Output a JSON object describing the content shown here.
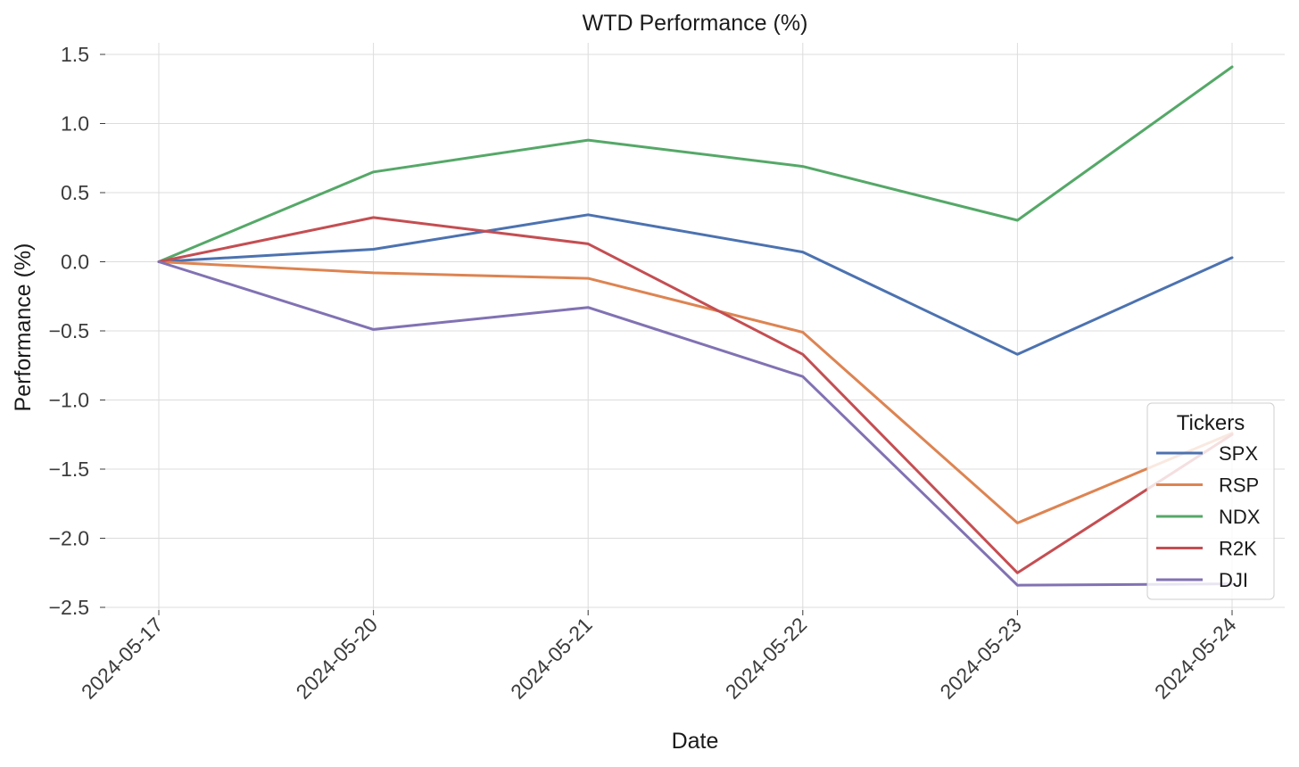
{
  "chart_data": {
    "type": "line",
    "title": "WTD Performance (%)",
    "xlabel": "Date",
    "ylabel": "Performance (%)",
    "categories": [
      "2024-05-17",
      "2024-05-20",
      "2024-05-21",
      "2024-05-22",
      "2024-05-23",
      "2024-05-24"
    ],
    "ylim": [
      -2.55,
      1.6
    ],
    "yticks": [
      1.5,
      1.0,
      0.5,
      0.0,
      -0.5,
      -1.0,
      -1.5,
      -2.0,
      -2.5
    ],
    "ytick_labels": [
      "1.5",
      "1.0",
      "0.5",
      "0.0",
      "−0.5",
      "−1.0",
      "−1.5",
      "−2.0",
      "−2.5"
    ],
    "grid": true,
    "legend": {
      "title": "Tickers",
      "position": "lower-right"
    },
    "series": [
      {
        "name": "SPX",
        "color": "#4c72b0",
        "values": [
          0.0,
          0.09,
          0.34,
          0.07,
          -0.67,
          0.03
        ]
      },
      {
        "name": "RSP",
        "color": "#dd8452",
        "values": [
          0.0,
          -0.08,
          -0.12,
          -0.51,
          -1.89,
          -1.24
        ]
      },
      {
        "name": "NDX",
        "color": "#55a868",
        "values": [
          0.0,
          0.65,
          0.88,
          0.69,
          0.3,
          1.41
        ]
      },
      {
        "name": "R2K",
        "color": "#c44e52",
        "values": [
          0.0,
          0.32,
          0.13,
          -0.67,
          -2.25,
          -1.25
        ]
      },
      {
        "name": "DJI",
        "color": "#8172b3",
        "values": [
          0.0,
          -0.49,
          -0.33,
          -0.83,
          -2.34,
          -2.33
        ]
      }
    ]
  }
}
